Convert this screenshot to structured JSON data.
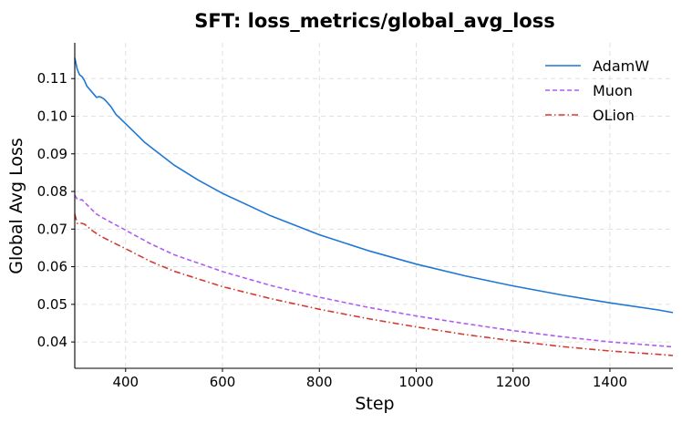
{
  "chart_data": {
    "type": "line",
    "title": "SFT: loss_metrics/global_avg_loss",
    "xlabel": "Step",
    "ylabel": "Global Avg Loss",
    "xlim": [
      295,
      1530
    ],
    "ylim": [
      0.033,
      0.1195
    ],
    "grid": true,
    "legend_position": "top-right",
    "xticks": [
      400,
      600,
      800,
      1000,
      1200,
      1400
    ],
    "xtick_labels": [
      "400",
      "600",
      "800",
      "1000",
      "1200",
      "1400"
    ],
    "yticks": [
      0.04,
      0.05,
      0.06,
      0.07,
      0.08,
      0.09,
      0.1,
      0.11
    ],
    "ytick_labels": [
      "0.04",
      "0.05",
      "0.06",
      "0.07",
      "0.08",
      "0.09",
      "0.10",
      "0.11"
    ],
    "series": [
      {
        "name": "AdamW",
        "color": "#1f77d4",
        "dash": "solid",
        "x": [
          295,
          300,
          305,
          310,
          315,
          320,
          330,
          340,
          345,
          350,
          355,
          360,
          370,
          380,
          400,
          420,
          440,
          460,
          480,
          500,
          550,
          600,
          700,
          800,
          900,
          1000,
          1100,
          1200,
          1300,
          1400,
          1500,
          1530
        ],
        "y": [
          0.1155,
          0.1125,
          0.111,
          0.1105,
          0.1095,
          0.108,
          0.1065,
          0.105,
          0.1052,
          0.105,
          0.1046,
          0.104,
          0.1025,
          0.1005,
          0.098,
          0.0955,
          0.093,
          0.091,
          0.089,
          0.087,
          0.083,
          0.0795,
          0.0735,
          0.0685,
          0.0643,
          0.0607,
          0.0576,
          0.0549,
          0.0525,
          0.0504,
          0.0485,
          0.0478
        ]
      },
      {
        "name": "Muon",
        "color": "#b05cf2",
        "dash": "dashed",
        "x": [
          295,
          300,
          305,
          310,
          315,
          320,
          330,
          340,
          350,
          370,
          400,
          450,
          500,
          600,
          700,
          800,
          900,
          1000,
          1100,
          1200,
          1300,
          1400,
          1500,
          1530
        ],
        "y": [
          0.079,
          0.078,
          0.0777,
          0.0778,
          0.0772,
          0.0765,
          0.0752,
          0.074,
          0.0732,
          0.0718,
          0.0697,
          0.0662,
          0.0632,
          0.0587,
          0.055,
          0.0519,
          0.0492,
          0.0469,
          0.0449,
          0.043,
          0.0414,
          0.04,
          0.039,
          0.0387
        ]
      },
      {
        "name": "OLion",
        "color": "#d23a32",
        "dash": "dashdot",
        "x": [
          295,
          300,
          305,
          310,
          315,
          320,
          330,
          340,
          350,
          370,
          400,
          450,
          500,
          600,
          700,
          800,
          900,
          1000,
          1100,
          1200,
          1300,
          1400,
          1500,
          1530
        ],
        "y": [
          0.074,
          0.0715,
          0.0717,
          0.0715,
          0.0713,
          0.0708,
          0.0697,
          0.0688,
          0.068,
          0.0667,
          0.0648,
          0.0615,
          0.0588,
          0.0547,
          0.0515,
          0.0487,
          0.0462,
          0.044,
          0.042,
          0.0403,
          0.0388,
          0.0376,
          0.0367,
          0.0364
        ]
      }
    ]
  }
}
